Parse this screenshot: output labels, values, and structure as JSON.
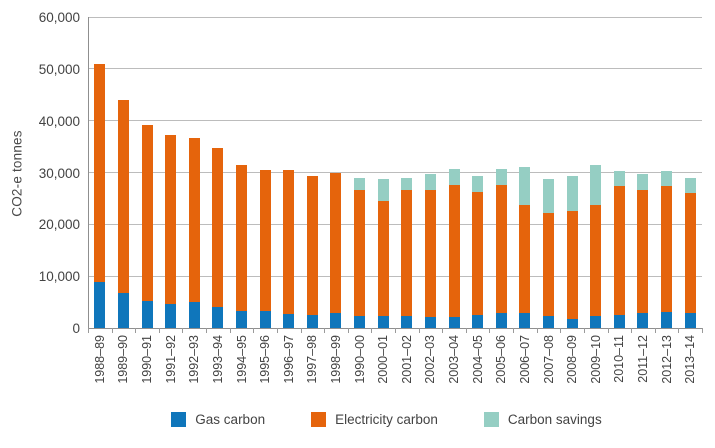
{
  "chart_data": {
    "type": "bar",
    "stacked": true,
    "title": "",
    "xlabel": "",
    "ylabel": "CO2-e tonnes",
    "ylim": [
      0,
      60000
    ],
    "ytick_step": 10000,
    "ytick_labels": [
      "0",
      "10,000",
      "20,000",
      "30,000",
      "40,000",
      "50,000",
      "60,000"
    ],
    "grid": true,
    "legend_position": "bottom",
    "categories": [
      "1988–89",
      "1989–90",
      "1990–91",
      "1991–92",
      "1992–93",
      "1993–94",
      "1994–95",
      "1995–96",
      "1996–97",
      "1997–98",
      "1998–99",
      "1990–00",
      "2000–01",
      "2001–02",
      "2002–03",
      "2003–04",
      "2004–05",
      "2005–06",
      "2006–07",
      "2007–08",
      "2008–09",
      "2009–10",
      "2010–11",
      "2011–12",
      "2012–13",
      "2013–14"
    ],
    "series": [
      {
        "name": "Gas carbon",
        "color": "#0f76bb",
        "values": [
          8900,
          6800,
          5300,
          4600,
          5000,
          4000,
          3300,
          3300,
          2700,
          2600,
          2900,
          2300,
          2400,
          2400,
          2100,
          2100,
          2600,
          2900,
          2900,
          2400,
          1800,
          2400,
          2600,
          2900,
          3100,
          2800
        ]
      },
      {
        "name": "Electricity carbon",
        "color": "#e5640c",
        "values": [
          42000,
          37100,
          33900,
          32600,
          31700,
          30700,
          28100,
          27200,
          27700,
          26800,
          27100,
          24300,
          22100,
          24200,
          24600,
          25500,
          23700,
          24700,
          20900,
          19800,
          20800,
          21400,
          24800,
          23700,
          24300,
          23300
        ]
      },
      {
        "name": "Carbon savings",
        "color": "#95cec3",
        "values": [
          0,
          0,
          0,
          0,
          0,
          0,
          0,
          0,
          0,
          0,
          0,
          2300,
          4200,
          2300,
          3100,
          3100,
          3000,
          3100,
          7300,
          6500,
          6700,
          7600,
          2900,
          3200,
          2900,
          2900
        ]
      }
    ]
  }
}
